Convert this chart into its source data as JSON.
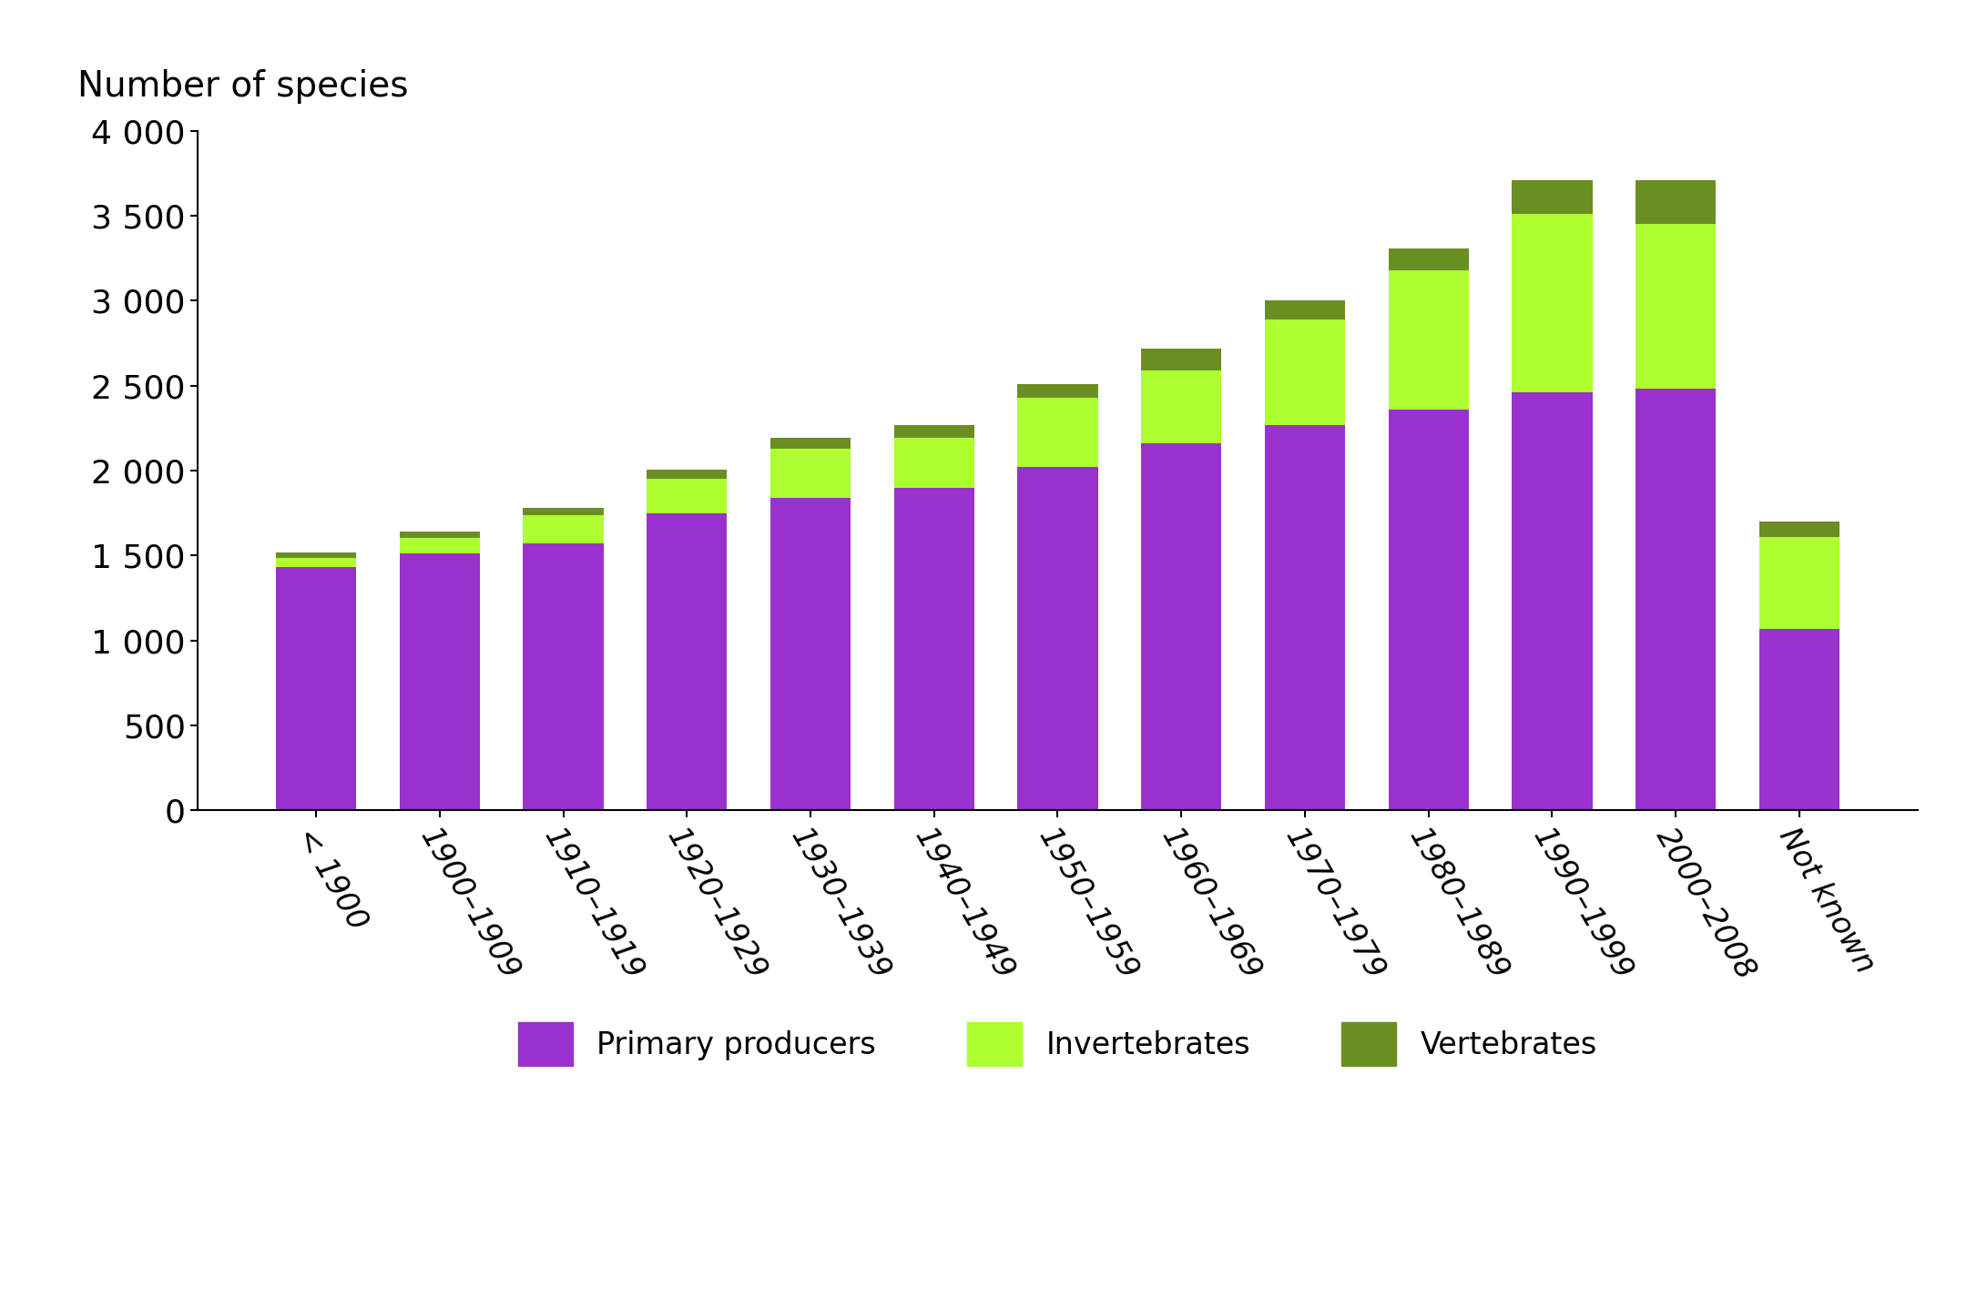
{
  "categories": [
    "< 1900",
    "1900–1909",
    "1910–1919",
    "1920–1929",
    "1930–1939",
    "1940–1949",
    "1950–1959",
    "1960–1969",
    "1970–1979",
    "1980–1989",
    "1990–1999",
    "2000–2008",
    "Not known"
  ],
  "primary_producers": [
    1430,
    1510,
    1570,
    1750,
    1840,
    1900,
    2020,
    2160,
    2270,
    2360,
    2460,
    2480,
    1070
  ],
  "invertebrates": [
    55,
    95,
    165,
    200,
    290,
    290,
    410,
    430,
    620,
    820,
    1050,
    970,
    540
  ],
  "vertebrates": [
    30,
    35,
    45,
    55,
    65,
    75,
    80,
    125,
    110,
    125,
    200,
    260,
    90
  ],
  "color_primary": "#9932CC",
  "color_invertebrates": "#ADFF2F",
  "color_vertebrates": "#6B8E23",
  "title": "Number of species",
  "ylim": [
    0,
    4000
  ],
  "yticks": [
    0,
    500,
    1000,
    1500,
    2000,
    2500,
    3000,
    3500,
    4000
  ],
  "ytick_labels": [
    "0",
    "500",
    "1 000",
    "1 500",
    "2 000",
    "2 500",
    "3 000",
    "3 500",
    "4 000"
  ],
  "legend_labels": [
    "Primary producers",
    "Invertebrates",
    "Vertebrates"
  ],
  "background_color": "#ffffff"
}
